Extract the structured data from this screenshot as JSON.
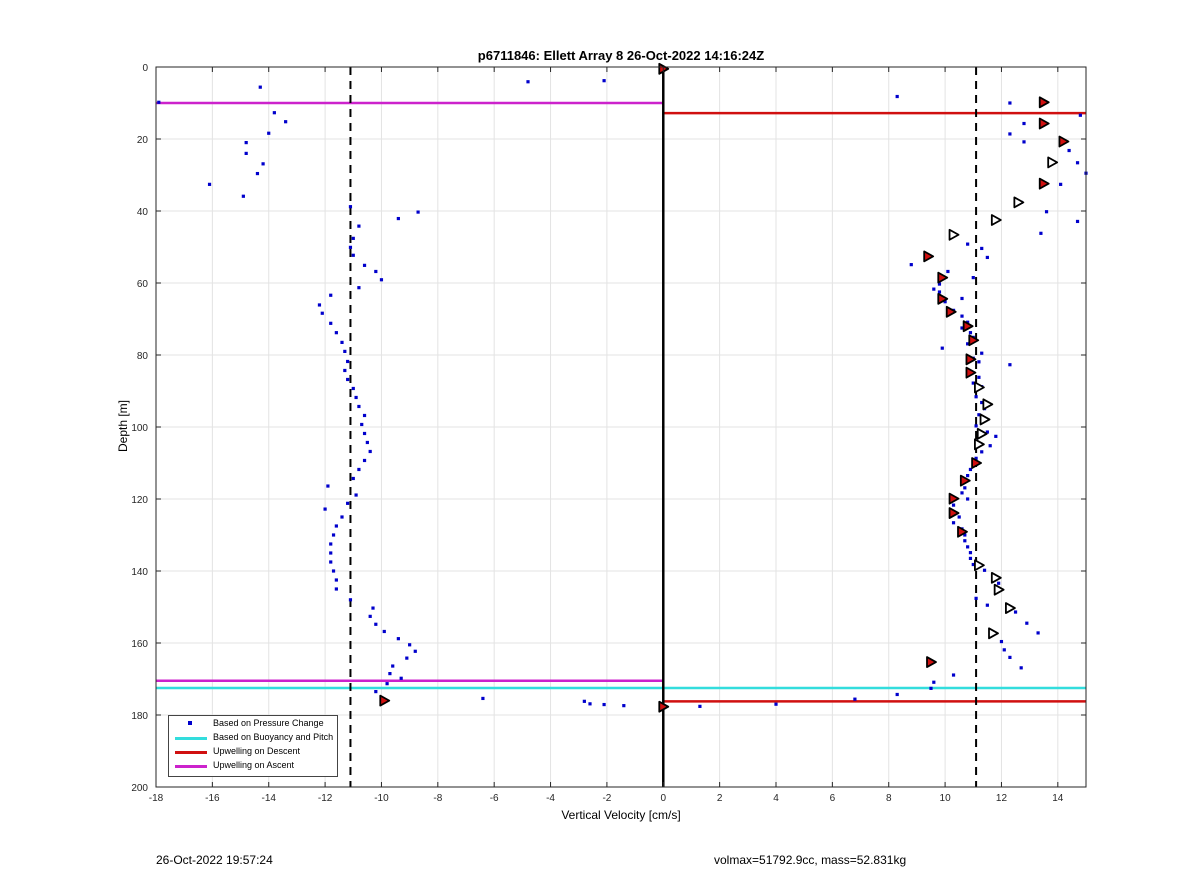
{
  "chart_data": {
    "type": "scatter",
    "title": "p6711846: Ellett Array 8 26-Oct-2022 14:16:24Z",
    "xlabel": "Vertical Velocity [cm/s]",
    "ylabel": "Depth [m]",
    "xlim": [
      -18,
      15
    ],
    "ylim": [
      0,
      200
    ],
    "y_reversed": true,
    "grid": true,
    "xticks": [
      -18,
      -16,
      -14,
      -12,
      -10,
      -8,
      -6,
      -4,
      -2,
      0,
      2,
      4,
      6,
      8,
      10,
      12,
      14
    ],
    "yticks": [
      0,
      20,
      40,
      60,
      80,
      100,
      120,
      140,
      160,
      180,
      200
    ],
    "legend_position": "bottom-left",
    "colors": {
      "pressure": "#0000cc",
      "buoyancy": "#33dddd",
      "descent": "#d01010",
      "ascent": "#cc22cc",
      "threshold": "#000000"
    },
    "legend": [
      {
        "label": "Based on Pressure Change",
        "style": "dot",
        "color": "#0000cc"
      },
      {
        "label": "Based on Buoyancy and Pitch",
        "style": "line",
        "color": "#33dddd"
      },
      {
        "label": "Upwelling on Descent",
        "style": "line",
        "color": "#d01010"
      },
      {
        "label": "Upwelling on Ascent",
        "style": "line",
        "color": "#cc22cc"
      }
    ],
    "threshold_lines_x": [
      -11.1,
      11.1
    ],
    "zero_line_x": 0,
    "horizontal_lines": [
      {
        "series": "Upwelling on Ascent",
        "color": "#cc22cc",
        "depth": 10.0,
        "x_from": -18,
        "x_to": 0
      },
      {
        "series": "Upwelling on Descent",
        "color": "#d01010",
        "depth": 12.8,
        "x_from": 0,
        "x_to": 15
      },
      {
        "series": "Upwelling on Ascent",
        "color": "#cc22cc",
        "depth": 170.5,
        "x_from": -18,
        "x_to": 0
      },
      {
        "series": "Based on Buoyancy and Pitch",
        "color": "#33dddd",
        "depth": 172.5,
        "x_from": -18,
        "x_to": 15
      },
      {
        "series": "Upwelling on Descent",
        "color": "#d01010",
        "depth": 176.2,
        "x_from": 0,
        "x_to": 15
      }
    ],
    "series": [
      {
        "name": "Based on Pressure Change",
        "color": "#0000cc",
        "points": [
          [
            -14.3,
            5.6
          ],
          [
            -17.9,
            9.8
          ],
          [
            -4.8,
            4.1
          ],
          [
            -2.1,
            3.8
          ],
          [
            -13.8,
            12.7
          ],
          [
            -13.4,
            15.2
          ],
          [
            -14.0,
            18.4
          ],
          [
            -14.8,
            21.0
          ],
          [
            -14.8,
            24.0
          ],
          [
            -14.2,
            26.9
          ],
          [
            -14.4,
            29.6
          ],
          [
            -16.1,
            32.6
          ],
          [
            -14.9,
            35.9
          ],
          [
            -11.1,
            38.8
          ],
          [
            -9.4,
            42.1
          ],
          [
            -8.7,
            40.3
          ],
          [
            -10.8,
            44.2
          ],
          [
            -11.0,
            47.6
          ],
          [
            -11.1,
            50.1
          ],
          [
            -11.0,
            52.3
          ],
          [
            -10.6,
            55.1
          ],
          [
            -10.2,
            56.8
          ],
          [
            -10.0,
            59.1
          ],
          [
            -10.8,
            61.3
          ],
          [
            -11.8,
            63.4
          ],
          [
            -12.2,
            66.1
          ],
          [
            -12.1,
            68.4
          ],
          [
            -11.8,
            71.2
          ],
          [
            -11.6,
            73.8
          ],
          [
            -11.4,
            76.5
          ],
          [
            -11.3,
            79.0
          ],
          [
            -11.2,
            81.8
          ],
          [
            -11.3,
            84.3
          ],
          [
            -11.2,
            86.8
          ],
          [
            -11.0,
            89.3
          ],
          [
            -10.9,
            91.8
          ],
          [
            -10.8,
            94.3
          ],
          [
            -10.6,
            96.8
          ],
          [
            -10.7,
            99.3
          ],
          [
            -10.6,
            101.8
          ],
          [
            -10.5,
            104.3
          ],
          [
            -10.4,
            106.8
          ],
          [
            -10.6,
            109.3
          ],
          [
            -10.8,
            111.8
          ],
          [
            -11.0,
            114.3
          ],
          [
            -11.9,
            116.4
          ],
          [
            -10.9,
            118.9
          ],
          [
            -11.2,
            121.2
          ],
          [
            -12.0,
            122.8
          ],
          [
            -11.4,
            125.0
          ],
          [
            -11.6,
            127.5
          ],
          [
            -11.7,
            130.0
          ],
          [
            -11.8,
            132.5
          ],
          [
            -11.8,
            135.0
          ],
          [
            -11.8,
            137.5
          ],
          [
            -11.7,
            140.0
          ],
          [
            -11.6,
            142.5
          ],
          [
            -11.6,
            145.0
          ],
          [
            -11.1,
            148.0
          ],
          [
            -10.3,
            150.3
          ],
          [
            -10.4,
            152.6
          ],
          [
            -10.2,
            154.8
          ],
          [
            -9.9,
            156.8
          ],
          [
            -9.4,
            158.8
          ],
          [
            -9.0,
            160.5
          ],
          [
            -8.8,
            162.3
          ],
          [
            -9.1,
            164.2
          ],
          [
            -9.6,
            166.4
          ],
          [
            -9.7,
            168.5
          ],
          [
            -9.8,
            171.3
          ],
          [
            -9.3,
            169.8
          ],
          [
            -10.2,
            173.5
          ],
          [
            -9.9,
            175.9
          ],
          [
            -6.4,
            175.4
          ],
          [
            -2.8,
            176.2
          ],
          [
            -2.6,
            176.9
          ],
          [
            -2.1,
            177.1
          ],
          [
            -1.4,
            177.4
          ],
          [
            0.0,
            177.4
          ],
          [
            1.3,
            177.6
          ],
          [
            4.0,
            177.0
          ],
          [
            6.8,
            175.6
          ],
          [
            8.3,
            174.3
          ],
          [
            8.3,
            8.2
          ],
          [
            12.3,
            10.0
          ],
          [
            13.4,
            9.6
          ],
          [
            14.8,
            13.4
          ],
          [
            12.8,
            15.7
          ],
          [
            12.3,
            18.6
          ],
          [
            12.8,
            20.8
          ],
          [
            14.4,
            23.2
          ],
          [
            14.7,
            26.6
          ],
          [
            15.0,
            29.5
          ],
          [
            14.1,
            32.6
          ],
          [
            12.7,
            37.6
          ],
          [
            13.6,
            40.2
          ],
          [
            14.7,
            42.9
          ],
          [
            13.4,
            46.2
          ],
          [
            11.3,
            50.4
          ],
          [
            10.8,
            49.2
          ],
          [
            11.5,
            52.9
          ],
          [
            8.8,
            54.9
          ],
          [
            10.1,
            56.8
          ],
          [
            11.0,
            58.5
          ],
          [
            9.8,
            60.3
          ],
          [
            9.6,
            61.7
          ],
          [
            9.8,
            62.5
          ],
          [
            10.6,
            64.3
          ],
          [
            10.0,
            65.2
          ],
          [
            10.3,
            67.6
          ],
          [
            10.6,
            69.2
          ],
          [
            10.8,
            70.9
          ],
          [
            10.6,
            72.5
          ],
          [
            10.9,
            73.8
          ],
          [
            11.0,
            75.1
          ],
          [
            10.8,
            76.9
          ],
          [
            9.9,
            78.1
          ],
          [
            11.3,
            79.5
          ],
          [
            11.0,
            80.9
          ],
          [
            11.2,
            81.9
          ],
          [
            12.3,
            82.7
          ],
          [
            10.8,
            84.6
          ],
          [
            11.2,
            86.2
          ],
          [
            11.0,
            87.8
          ],
          [
            11.3,
            88.8
          ],
          [
            11.1,
            91.6
          ],
          [
            11.3,
            93.2
          ],
          [
            11.4,
            94.9
          ],
          [
            11.2,
            96.6
          ],
          [
            11.4,
            98.3
          ],
          [
            11.1,
            99.7
          ],
          [
            11.5,
            101.4
          ],
          [
            11.8,
            102.6
          ],
          [
            11.1,
            103.9
          ],
          [
            11.6,
            105.2
          ],
          [
            11.3,
            106.9
          ],
          [
            11.1,
            108.7
          ],
          [
            11.0,
            110.4
          ],
          [
            10.9,
            111.8
          ],
          [
            10.8,
            113.5
          ],
          [
            10.6,
            115.2
          ],
          [
            10.7,
            116.9
          ],
          [
            10.6,
            118.3
          ],
          [
            10.8,
            120.0
          ],
          [
            10.3,
            121.7
          ],
          [
            10.2,
            123.3
          ],
          [
            10.5,
            125.0
          ],
          [
            10.3,
            126.6
          ],
          [
            10.6,
            128.3
          ],
          [
            10.7,
            130.0
          ],
          [
            10.7,
            131.6
          ],
          [
            10.8,
            133.3
          ],
          [
            10.9,
            134.9
          ],
          [
            10.9,
            136.5
          ],
          [
            11.0,
            138.2
          ],
          [
            11.4,
            139.8
          ],
          [
            11.7,
            142.2
          ],
          [
            11.9,
            143.4
          ],
          [
            11.1,
            147.6
          ],
          [
            11.5,
            149.5
          ],
          [
            12.5,
            151.4
          ],
          [
            12.9,
            154.5
          ],
          [
            13.3,
            157.2
          ],
          [
            12.0,
            159.6
          ],
          [
            12.1,
            161.9
          ],
          [
            12.3,
            164.0
          ],
          [
            12.7,
            166.9
          ],
          [
            10.3,
            168.9
          ],
          [
            9.6,
            170.9
          ],
          [
            9.5,
            172.6
          ]
        ]
      },
      {
        "name": "Upwelling on Descent",
        "style": "red-marker",
        "points": [
          [
            0.0,
            0.5
          ],
          [
            13.5,
            9.8
          ],
          [
            13.5,
            15.7
          ],
          [
            14.2,
            20.7
          ],
          [
            13.5,
            32.4
          ],
          [
            9.4,
            52.6
          ],
          [
            9.9,
            58.5
          ],
          [
            9.9,
            64.4
          ],
          [
            10.2,
            68.0
          ],
          [
            10.8,
            72.0
          ],
          [
            11.0,
            75.9
          ],
          [
            10.9,
            81.2
          ],
          [
            10.9,
            84.9
          ],
          [
            11.1,
            110.0
          ],
          [
            10.7,
            114.9
          ],
          [
            10.3,
            119.9
          ],
          [
            10.3,
            123.9
          ],
          [
            10.6,
            129.1
          ],
          [
            9.5,
            165.3
          ],
          [
            0.0,
            177.7
          ],
          [
            -9.9,
            176.0
          ]
        ]
      },
      {
        "name": "Upwelling on Ascent",
        "style": "open-marker",
        "points": [
          [
            13.8,
            26.5
          ],
          [
            12.6,
            37.6
          ],
          [
            11.8,
            42.5
          ],
          [
            10.3,
            46.6
          ],
          [
            11.2,
            89.0
          ],
          [
            11.5,
            93.7
          ],
          [
            11.4,
            97.9
          ],
          [
            11.3,
            101.9
          ],
          [
            11.2,
            104.8
          ],
          [
            11.2,
            138.4
          ],
          [
            11.8,
            141.9
          ],
          [
            11.9,
            145.2
          ],
          [
            12.3,
            150.3
          ],
          [
            11.7,
            157.3
          ]
        ]
      }
    ]
  },
  "footer": {
    "timestamp": "26-Oct-2022 19:57:24",
    "info": "volmax=51792.9cc, mass=52.831kg"
  }
}
